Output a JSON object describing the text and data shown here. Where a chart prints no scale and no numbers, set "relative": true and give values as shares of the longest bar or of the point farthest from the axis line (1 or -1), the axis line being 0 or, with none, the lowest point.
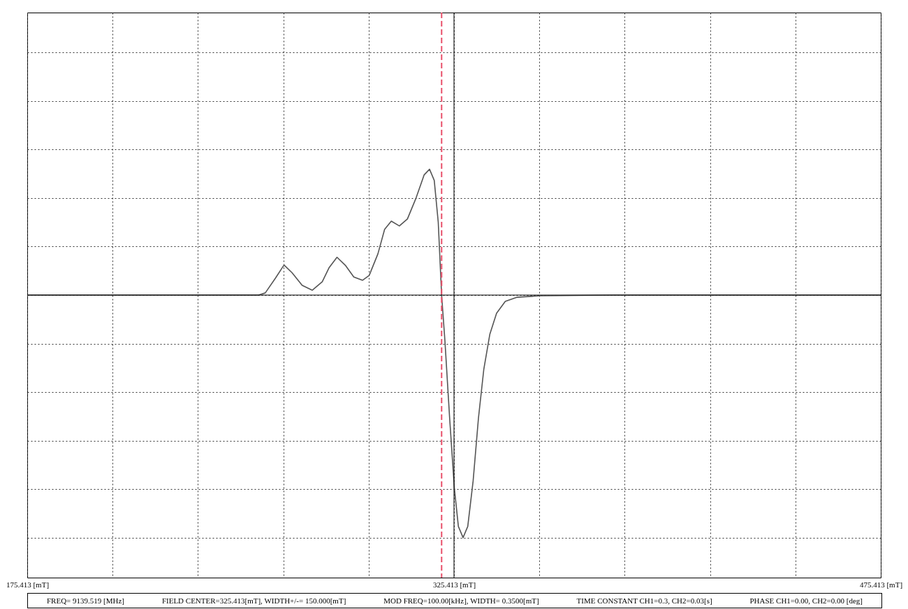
{
  "chart_data": {
    "type": "line",
    "relative": true,
    "x": [
      175.413,
      256.71,
      259.08,
      262.61,
      265.67,
      268.5,
      272.04,
      275.57,
      279.11,
      281.46,
      284.29,
      287.36,
      290.18,
      293.24,
      295.6,
      298.67,
      301.03,
      303.38,
      306.21,
      309.04,
      312.1,
      314.93,
      316.82,
      318.47,
      319.88,
      321.06,
      322.23,
      323.88,
      325.53,
      326.95,
      328.6,
      330.25,
      332.13,
      334.01,
      335.9,
      338.02,
      340.38,
      343.44,
      347.45,
      355.69,
      381.62,
      475.413
    ],
    "series": [
      {
        "color": "#555555",
        "values": [
          0,
          0,
          0.009,
          0.069,
          0.124,
          0.092,
          0.04,
          0.02,
          0.055,
          0.112,
          0.156,
          0.121,
          0.075,
          0.061,
          0.081,
          0.17,
          0.271,
          0.305,
          0.285,
          0.314,
          0.401,
          0.496,
          0.519,
          0.473,
          0.3,
          0,
          -0.19,
          -0.507,
          -0.795,
          -0.954,
          -1,
          -0.954,
          -0.767,
          -0.507,
          -0.305,
          -0.161,
          -0.075,
          -0.026,
          -0.009,
          -0.003,
          0,
          0
        ]
      }
    ],
    "xlim": [
      175.413,
      475.413
    ],
    "xticks": [
      {
        "value": 175.413,
        "label": "175.413 [mT]"
      },
      {
        "value": 205.413,
        "label": null
      },
      {
        "value": 235.413,
        "label": null
      },
      {
        "value": 265.413,
        "label": null
      },
      {
        "value": 295.413,
        "label": null
      },
      {
        "value": 325.413,
        "label": "325.413 [mT]"
      },
      {
        "value": 355.413,
        "label": null
      },
      {
        "value": 385.413,
        "label": null
      },
      {
        "value": 415.413,
        "label": null
      },
      {
        "value": 445.413,
        "label": null
      },
      {
        "value": 475.413,
        "label": "475.413 [mT]"
      }
    ],
    "grid": true,
    "ref_lines": [
      {
        "axis": "x",
        "value": 321.06,
        "color": "#e8506a",
        "line_style": "dashed"
      },
      {
        "axis": "x",
        "value": 325.413,
        "color": "#000000",
        "line_style": "solid"
      },
      {
        "axis": "y",
        "value": 0,
        "color": "#000000",
        "line_style": "solid"
      }
    ],
    "annotations": [
      "FREQ= 9139.519 [MHz]",
      "FIELD CENTER=325.413[mT], WIDTH+/-= 150.000[mT]",
      "MOD FREQ=100.00[kHz], WIDTH= 0.3500[mT]",
      "TIME CONSTANT CH1=0.3, CH2=0.03[s]",
      "PHASE CH1=0.00, CH2=0.00 [deg]"
    ]
  }
}
